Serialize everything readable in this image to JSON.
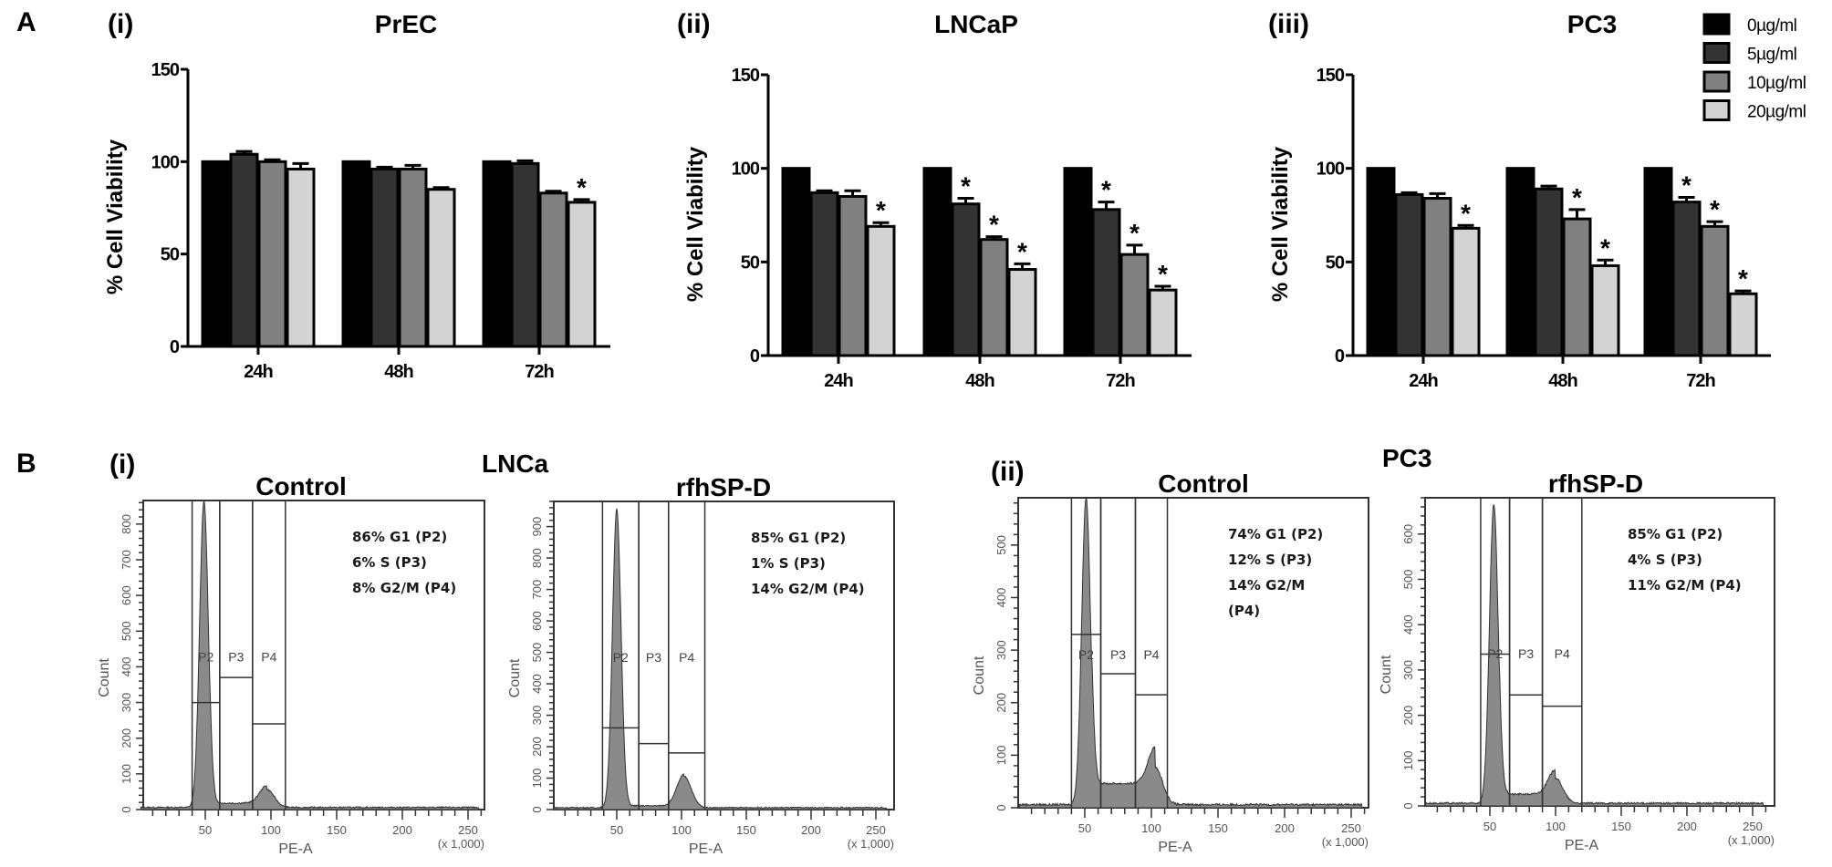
{
  "panel_labels": {
    "A": "A",
    "B": "B"
  },
  "chart_data": [
    {
      "type": "bar",
      "panel": "(i)",
      "title": "PrEC",
      "ylabel": "% Cell Viability",
      "xlabel": "",
      "ylim": [
        0,
        150
      ],
      "yticks": [
        "0",
        "50",
        "100",
        "150"
      ],
      "categories": [
        "24h",
        "48h",
        "72h"
      ],
      "series": [
        {
          "name": "0µg/ml",
          "color": "#000000",
          "values": [
            100,
            100,
            100
          ],
          "errors": [
            0,
            0,
            0
          ],
          "significant": [
            false,
            false,
            false
          ]
        },
        {
          "name": "5µg/ml",
          "color": "#333333",
          "values": [
            104,
            96,
            99
          ],
          "errors": [
            1.5,
            1,
            1.5
          ],
          "significant": [
            false,
            false,
            false
          ]
        },
        {
          "name": "10µg/ml",
          "color": "#808080",
          "values": [
            100,
            96,
            83
          ],
          "errors": [
            1,
            2,
            1
          ],
          "significant": [
            false,
            false,
            false
          ]
        },
        {
          "name": "20µg/ml",
          "color": "#d3d3d3",
          "values": [
            96,
            85,
            78
          ],
          "errors": [
            3,
            1,
            1.5
          ],
          "significant": [
            false,
            false,
            true
          ]
        }
      ],
      "star": "*"
    },
    {
      "type": "bar",
      "panel": "(ii)",
      "title": "LNCaP",
      "ylabel": "% Cell Viability",
      "xlabel": "",
      "ylim": [
        0,
        150
      ],
      "yticks": [
        "0",
        "50",
        "100",
        "150"
      ],
      "categories": [
        "24h",
        "48h",
        "72h"
      ],
      "series": [
        {
          "name": "0µg/ml",
          "color": "#000000",
          "values": [
            100,
            100,
            100
          ],
          "errors": [
            0,
            0,
            0
          ],
          "significant": [
            false,
            false,
            false
          ]
        },
        {
          "name": "5µg/ml",
          "color": "#333333",
          "values": [
            87,
            81,
            78
          ],
          "errors": [
            1,
            3,
            4
          ],
          "significant": [
            false,
            true,
            true
          ]
        },
        {
          "name": "10µg/ml",
          "color": "#808080",
          "values": [
            85,
            62,
            54
          ],
          "errors": [
            3,
            1.5,
            5
          ],
          "significant": [
            false,
            true,
            true
          ]
        },
        {
          "name": "20µg/ml",
          "color": "#d3d3d3",
          "values": [
            69,
            46,
            35
          ],
          "errors": [
            2,
            3,
            2
          ],
          "significant": [
            true,
            true,
            true
          ]
        }
      ],
      "star": "*"
    },
    {
      "type": "bar",
      "panel": "(iii)",
      "title": "PC3",
      "ylabel": "% Cell Viability",
      "xlabel": "",
      "ylim": [
        0,
        150
      ],
      "yticks": [
        "0",
        "50",
        "100",
        "150"
      ],
      "categories": [
        "24h",
        "48h",
        "72h"
      ],
      "series": [
        {
          "name": "0µg/ml",
          "color": "#000000",
          "values": [
            100,
            100,
            100
          ],
          "errors": [
            0,
            0,
            0
          ],
          "significant": [
            false,
            false,
            false
          ]
        },
        {
          "name": "5µg/ml",
          "color": "#333333",
          "values": [
            86,
            89,
            82
          ],
          "errors": [
            1,
            1.5,
            2.5
          ],
          "significant": [
            false,
            false,
            true
          ]
        },
        {
          "name": "10µg/ml",
          "color": "#808080",
          "values": [
            84,
            73,
            69
          ],
          "errors": [
            2.5,
            5,
            2.5
          ],
          "significant": [
            false,
            true,
            true
          ]
        },
        {
          "name": "20µg/ml",
          "color": "#d3d3d3",
          "values": [
            68,
            48,
            33
          ],
          "errors": [
            1.5,
            3,
            1.5
          ],
          "significant": [
            true,
            true,
            true
          ]
        }
      ],
      "star": "*",
      "legend_position": "top-right"
    },
    {
      "type": "histogram",
      "panel": "(i)",
      "group_label": "LNCa",
      "title": "Control",
      "xlabel": "PE-A",
      "x_unit": "(x 1,000)",
      "ylabel": "Count",
      "xlim": [
        0,
        262
      ],
      "xticks": [
        "50",
        "100",
        "150",
        "200",
        "250"
      ],
      "ylim": [
        0,
        866
      ],
      "yticks": [
        "0",
        "100",
        "200",
        "300",
        "400",
        "500",
        "600",
        "700",
        "800"
      ],
      "g1_peak": {
        "x": 49,
        "count": 860
      },
      "g2_peak": {
        "x": 97,
        "count": 50
      },
      "s_level": 12,
      "gates": [
        {
          "name": "P2",
          "range": [
            40,
            61
          ],
          "level": 300
        },
        {
          "name": "P3",
          "range": [
            61,
            86
          ],
          "level": 370
        },
        {
          "name": "P4",
          "range": [
            86,
            111
          ],
          "level": 240
        }
      ],
      "annotations": [
        "86% G1 (P2)",
        "6% S (P3)",
        "8% G2/M (P4)"
      ]
    },
    {
      "type": "histogram",
      "panel": "",
      "title": "rfhSP-D",
      "xlabel": "PE-A",
      "x_unit": "(x 1,000)",
      "ylabel": "Count",
      "xlim": [
        0,
        262
      ],
      "xticks": [
        "50",
        "100",
        "150",
        "200",
        "250"
      ],
      "ylim": [
        0,
        980
      ],
      "yticks": [
        "0",
        "100",
        "200",
        "300",
        "400",
        "500",
        "600",
        "700",
        "800",
        "900"
      ],
      "g1_peak": {
        "x": 50,
        "count": 950
      },
      "g2_peak": {
        "x": 102,
        "count": 100
      },
      "s_level": 6,
      "gates": [
        {
          "name": "P2",
          "range": [
            39,
            67
          ],
          "level": 260
        },
        {
          "name": "P3",
          "range": [
            67,
            90
          ],
          "level": 210
        },
        {
          "name": "P4",
          "range": [
            90,
            118
          ],
          "level": 180
        }
      ],
      "annotations": [
        "85% G1 (P2)",
        "1% S (P3)",
        "14% G2/M (P4)"
      ]
    },
    {
      "type": "histogram",
      "panel": "(ii)",
      "title": "Control",
      "xlabel": "PE-A",
      "x_unit": "(x 1,000)",
      "ylabel": "Count",
      "xlim": [
        0,
        262
      ],
      "xticks": [
        "50",
        "100",
        "150",
        "200",
        "250"
      ],
      "ylim": [
        0,
        590
      ],
      "yticks": [
        "0",
        "100",
        "200",
        "300",
        "400",
        "500"
      ],
      "g1_peak": {
        "x": 51,
        "count": 585
      },
      "g2_peak": {
        "x": 103,
        "count": 70
      },
      "s_level": 40,
      "gates": [
        {
          "name": "P2",
          "range": [
            40,
            62
          ],
          "level": 330
        },
        {
          "name": "P3",
          "range": [
            62,
            88
          ],
          "level": 255
        },
        {
          "name": "P4",
          "range": [
            88,
            112
          ],
          "level": 215
        }
      ],
      "annotations": [
        "74% G1 (P2)",
        "12% S (P3)",
        "14% G2/M",
        "(P4)"
      ]
    },
    {
      "type": "histogram",
      "panel": "",
      "group_label": "PC3",
      "title": "rfhSP-D",
      "xlabel": "PE-A",
      "x_unit": "(x 1,000)",
      "ylabel": "Count",
      "xlim": [
        0,
        262
      ],
      "xticks": [
        "50",
        "100",
        "150",
        "200",
        "250"
      ],
      "ylim": [
        0,
        680
      ],
      "yticks": [
        "0",
        "100",
        "200",
        "300",
        "400",
        "500",
        "600"
      ],
      "g1_peak": {
        "x": 53,
        "count": 660
      },
      "g2_peak": {
        "x": 100,
        "count": 55
      },
      "s_level": 20,
      "gates": [
        {
          "name": "P2",
          "range": [
            43,
            65
          ],
          "level": 335
        },
        {
          "name": "P3",
          "range": [
            65,
            90
          ],
          "level": 245
        },
        {
          "name": "P4",
          "range": [
            90,
            120
          ],
          "level": 220
        }
      ],
      "annotations": [
        "85% G1 (P2)",
        "4% S (P3)",
        "11% G2/M (P4)"
      ]
    }
  ]
}
